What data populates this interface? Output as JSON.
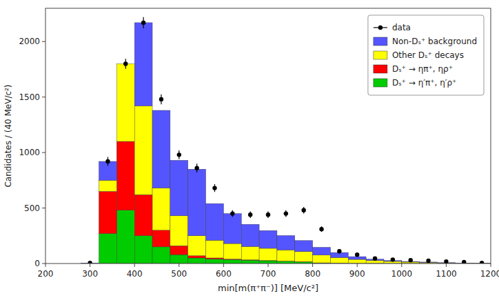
{
  "chart_data": {
    "type": "histogram",
    "stacked": true,
    "xlabel": "min[m(π⁺π⁻)] [MeV/c²]",
    "ylabel": "Candidates / (40 MeV/c²)",
    "bins": [
      280,
      320,
      360,
      400,
      440,
      480,
      520,
      560,
      600,
      640,
      680,
      720,
      760,
      800,
      840,
      880,
      920,
      960,
      1000,
      1040,
      1080,
      1120,
      1160,
      1200
    ],
    "series": [
      {
        "name": "Dₛ⁺ → η′π⁺, η′ρ⁺",
        "type": "bar",
        "color": "#00cc00",
        "values": [
          0,
          270,
          480,
          250,
          150,
          80,
          50,
          40,
          35,
          30,
          25,
          20,
          15,
          5,
          3,
          2,
          2,
          1,
          1,
          1,
          0,
          0,
          0
        ]
      },
      {
        "name": "Dₛ⁺ → ηπ⁺, ηρ⁺",
        "type": "bar",
        "color": "#ff0000",
        "values": [
          0,
          380,
          620,
          370,
          150,
          80,
          20,
          10,
          5,
          3,
          2,
          2,
          2,
          1,
          1,
          0,
          0,
          0,
          0,
          0,
          0,
          0,
          0
        ]
      },
      {
        "name": "Other Dₛ⁺ decays",
        "type": "bar",
        "color": "#ffff00",
        "values": [
          0,
          100,
          700,
          800,
          380,
          270,
          180,
          160,
          140,
          120,
          110,
          100,
          90,
          70,
          50,
          35,
          25,
          18,
          12,
          8,
          5,
          3,
          2
        ]
      },
      {
        "name": "Non-Dₛ⁺ background",
        "type": "bar",
        "color": "#5555ff",
        "values": [
          5,
          170,
          0,
          750,
          700,
          500,
          600,
          330,
          270,
          200,
          160,
          130,
          100,
          70,
          45,
          25,
          12,
          8,
          5,
          4,
          3,
          2,
          1
        ]
      },
      {
        "name": "data",
        "type": "scatter",
        "marker": "circle",
        "color": "#000000",
        "values": [
          5,
          920,
          1800,
          2170,
          1480,
          980,
          860,
          680,
          450,
          440,
          440,
          450,
          480,
          310,
          110,
          80,
          45,
          35,
          30,
          25,
          18,
          12,
          5
        ],
        "errors": [
          5,
          40,
          45,
          50,
          45,
          40,
          40,
          35,
          30,
          30,
          30,
          30,
          30,
          25,
          20,
          15,
          10,
          8,
          7,
          7,
          6,
          5,
          3
        ]
      }
    ],
    "xlim": [
      200,
      1200
    ],
    "ylim": [
      0,
      2300
    ],
    "xticks": [
      200,
      300,
      400,
      500,
      600,
      700,
      800,
      900,
      1000,
      1100,
      1200
    ],
    "yticks": [
      0,
      500,
      1000,
      1500,
      2000
    ],
    "grid": false,
    "legend": "upper right"
  }
}
